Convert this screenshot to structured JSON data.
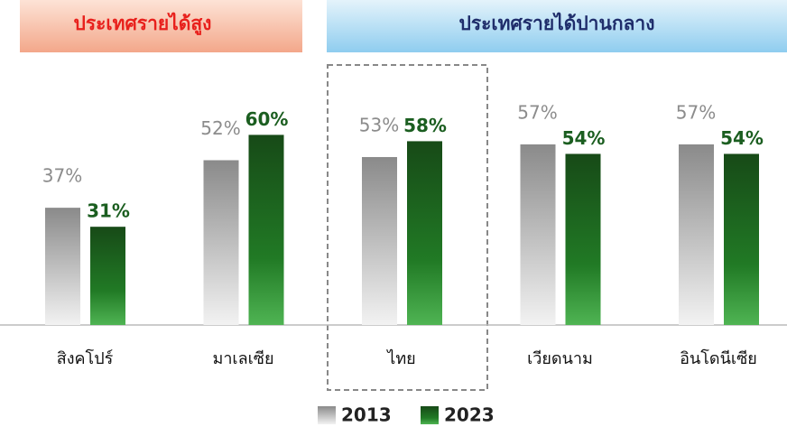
{
  "chart_data": {
    "type": "bar",
    "groups": [
      {
        "label": "ประเทศรายได้สูง"
      },
      {
        "label": "ประเทศรายได้ปานกลาง"
      }
    ],
    "categories": [
      "สิงคโปร์",
      "มาเลเซีย",
      "ไทย",
      "เวียดนาม",
      "อินโดนีเซีย"
    ],
    "series": [
      {
        "name": "2013",
        "color": "#8c8c8c",
        "values": [
          37,
          52,
          53,
          57,
          57
        ],
        "value_labels": [
          "37%",
          "52%",
          "53%",
          "57%",
          "57%"
        ]
      },
      {
        "name": "2023",
        "color": "#1b5e20",
        "values": [
          31,
          60,
          58,
          54,
          54
        ],
        "value_labels": [
          "31%",
          "60%",
          "58%",
          "54%",
          "54%"
        ]
      }
    ]
  }
}
